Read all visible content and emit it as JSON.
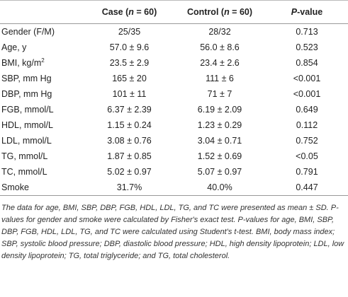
{
  "header": {
    "label": "",
    "case": [
      "Case (",
      "n",
      " = 60)"
    ],
    "control": [
      "Control (",
      "n",
      " = 60)"
    ],
    "pvalue": [
      "P",
      "-value"
    ]
  },
  "rows": [
    {
      "label": "Gender (F/M)",
      "cells": [
        "25/35",
        "28/32",
        "0.713"
      ]
    },
    {
      "label": "Age, y",
      "cells": [
        "57.0 ± 9.6",
        "56.0 ± 8.6",
        "0.523"
      ]
    },
    {
      "label": [
        "BMI, kg/m",
        "2"
      ],
      "cells": [
        "23.5 ± 2.9",
        "23.4 ± 2.6",
        "0.854"
      ]
    },
    {
      "label": "SBP, mm Hg",
      "cells": [
        "165 ± 20",
        "111 ± 6",
        "<0.001"
      ]
    },
    {
      "label": "DBP, mm Hg",
      "cells": [
        "101 ± 11",
        "71 ± 7",
        "<0.001"
      ]
    },
    {
      "label": "FGB, mmol/L",
      "cells": [
        "6.37 ± 2.39",
        "6.19 ± 2.09",
        "0.649"
      ]
    },
    {
      "label": "HDL, mmol/L",
      "cells": [
        "1.15 ± 0.24",
        "1.23 ± 0.29",
        "0.112"
      ]
    },
    {
      "label": "LDL, mmol/L",
      "cells": [
        "3.08 ± 0.76",
        "3.04 ± 0.71",
        "0.752"
      ]
    },
    {
      "label": "TG, mmol/L",
      "cells": [
        "1.87 ± 0.85",
        "1.52 ± 0.69",
        "<0.05"
      ]
    },
    {
      "label": "TC, mmol/L",
      "cells": [
        "5.02 ± 0.97",
        "5.07 ± 0.97",
        "0.791"
      ]
    },
    {
      "label": "Smoke",
      "cells": [
        "31.7%",
        "40.0%",
        "0.447"
      ]
    }
  ],
  "footnote": "The data for age, BMI, SBP, DBP, FGB, HDL, LDL, TG, and TC were presented as mean ± SD. P-values for gender and smoke were calculated by Fisher's exact test. P-values for age, BMI, SBP, DBP, FGB, HDL, LDL, TG, and TC were calculated using Student's t-test. BMI, body mass index; SBP, systolic blood pressure; DBP, diastolic blood pressure; HDL, high density lipoprotein; LDL, low density lipoprotein; TG, total triglyceride; and TG, total cholesterol."
}
